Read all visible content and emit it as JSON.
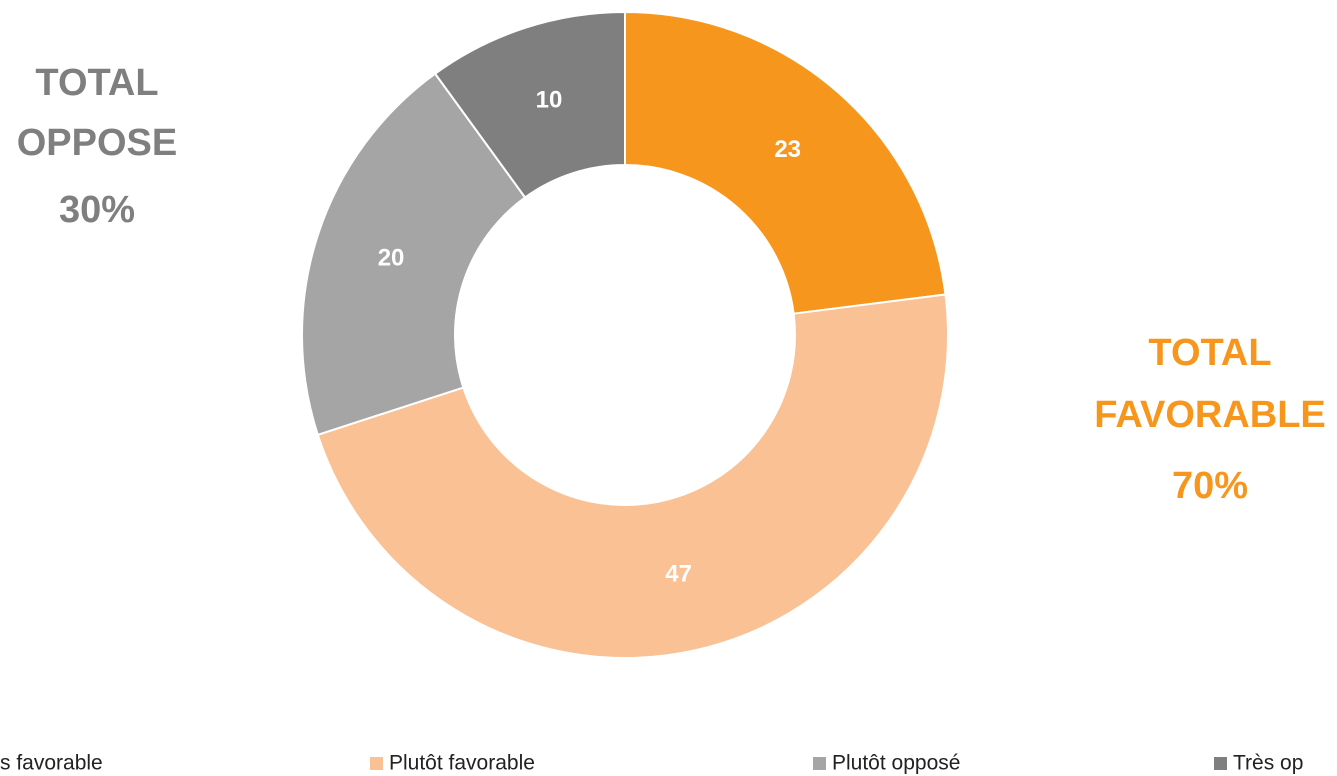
{
  "chart_data": {
    "type": "donut",
    "categories": [
      "s favorable",
      "Plutôt favorable",
      "Plutôt opposé",
      "Très op"
    ],
    "values": [
      23,
      47,
      20,
      10
    ],
    "colors": [
      "#f7961d",
      "#f9c194",
      "#a5a5a5",
      "#7f7f7f"
    ],
    "annotations": [
      {
        "lines": [
          "TOTAL",
          "OPPOSE",
          "30%"
        ],
        "color": "#7f7f7f"
      },
      {
        "lines": [
          "TOTAL",
          "FAVORABLE",
          "70%"
        ],
        "color": "#f7961d"
      }
    ],
    "legend": "bottom"
  }
}
